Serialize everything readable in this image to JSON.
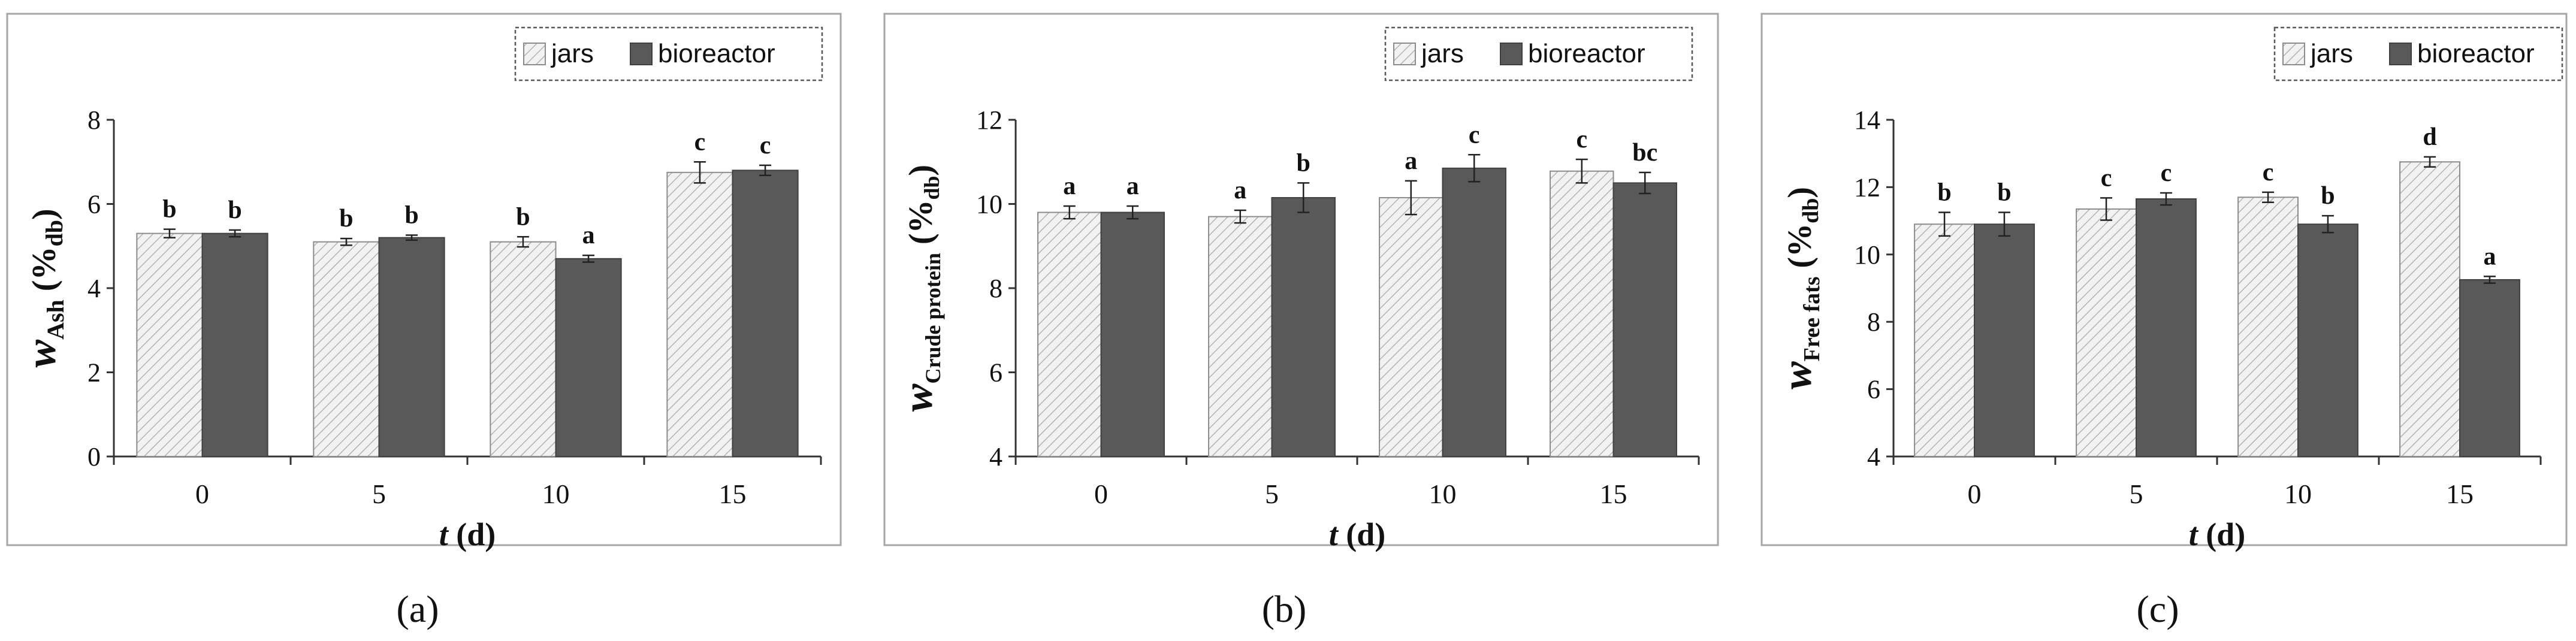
{
  "colors": {
    "jars_fill": "#f2f2f2",
    "jars_hatch": "#b3b3b3",
    "bioreactor_fill": "#595959",
    "frame": "#a6a6a6"
  },
  "legend": {
    "series_names": [
      "jars",
      "bioreactor"
    ]
  },
  "chart_data": [
    {
      "type": "bar",
      "panel_label": "(a)",
      "categories": [
        "0",
        "5",
        "10",
        "15"
      ],
      "series": [
        {
          "name": "jars",
          "values": [
            5.3,
            5.1,
            5.1,
            6.75
          ],
          "errors": [
            0.1,
            0.08,
            0.12,
            0.25
          ],
          "letters": [
            "b",
            "b",
            "b",
            "c"
          ]
        },
        {
          "name": "bioreactor",
          "values": [
            5.3,
            5.2,
            4.7,
            6.8
          ],
          "errors": [
            0.08,
            0.06,
            0.08,
            0.12
          ],
          "letters": [
            "b",
            "b",
            "a",
            "c"
          ]
        }
      ],
      "xlabel_main": "t",
      "xlabel_unit": " (d)",
      "ylabel_main": "w",
      "ylabel_sub": "Ash",
      "ylabel_unit_pre": " (%",
      "ylabel_unit_sub": "db",
      "ylabel_unit_post": ")",
      "ylim": [
        0,
        8
      ],
      "yticks": [
        "0",
        "2",
        "4",
        "6",
        "8"
      ],
      "legend_position": "top-right",
      "grid": false
    },
    {
      "type": "bar",
      "panel_label": "(b)",
      "categories": [
        "0",
        "5",
        "10",
        "15"
      ],
      "series": [
        {
          "name": "jars",
          "values": [
            9.8,
            9.7,
            10.15,
            10.78
          ],
          "errors": [
            0.15,
            0.15,
            0.4,
            0.28
          ],
          "letters": [
            "a",
            "a",
            "a",
            "c"
          ]
        },
        {
          "name": "bioreactor",
          "values": [
            9.8,
            10.15,
            10.85,
            10.5
          ],
          "errors": [
            0.15,
            0.35,
            0.32,
            0.25
          ],
          "letters": [
            "a",
            "b",
            "c",
            "bc"
          ]
        }
      ],
      "xlabel_main": "t",
      "xlabel_unit": " (d)",
      "ylabel_main": "w",
      "ylabel_sub": "Crude protein",
      "ylabel_unit_pre": " (%",
      "ylabel_unit_sub": "db",
      "ylabel_unit_post": ")",
      "ylim": [
        4,
        12
      ],
      "yticks": [
        "4",
        "6",
        "8",
        "10",
        "12"
      ],
      "legend_position": "top-right",
      "grid": false
    },
    {
      "type": "bar",
      "panel_label": "(c)",
      "categories": [
        "0",
        "5",
        "10",
        "15"
      ],
      "series": [
        {
          "name": "jars",
          "values": [
            10.9,
            11.35,
            11.7,
            12.75
          ],
          "errors": [
            0.35,
            0.33,
            0.15,
            0.15
          ],
          "letters": [
            "b",
            "c",
            "c",
            "d"
          ]
        },
        {
          "name": "bioreactor",
          "values": [
            10.9,
            11.65,
            10.9,
            9.25
          ],
          "errors": [
            0.35,
            0.18,
            0.25,
            0.1
          ],
          "letters": [
            "b",
            "c",
            "b",
            "a"
          ]
        }
      ],
      "xlabel_main": "t",
      "xlabel_unit": " (d)",
      "ylabel_main": "w",
      "ylabel_sub": "Free fats",
      "ylabel_unit_pre": " (%",
      "ylabel_unit_sub": "db",
      "ylabel_unit_post": ")",
      "ylim": [
        4,
        14
      ],
      "yticks": [
        "4",
        "6",
        "8",
        "10",
        "12",
        "14"
      ],
      "legend_position": "top-right",
      "grid": false
    }
  ]
}
